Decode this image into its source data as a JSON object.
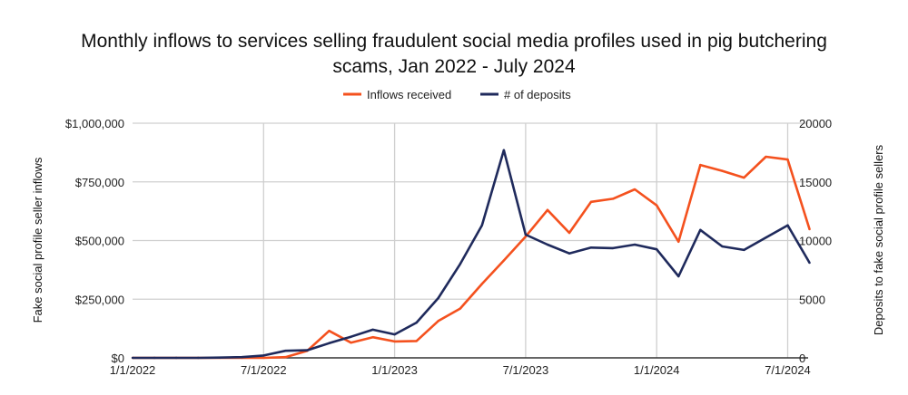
{
  "chart_data": {
    "type": "line",
    "title": [
      "Monthly inflows to services selling fraudulent social media profiles used in pig butchering",
      "scams, Jan 2022 - July 2024"
    ],
    "xlabel": "",
    "ylabel": "Fake social profile seller inflows",
    "y2label": "Deposits to fake social profile sellers",
    "x": [
      "2022-01",
      "2022-02",
      "2022-03",
      "2022-04",
      "2022-05",
      "2022-06",
      "2022-07",
      "2022-08",
      "2022-09",
      "2022-10",
      "2022-11",
      "2022-12",
      "2023-01",
      "2023-02",
      "2023-03",
      "2023-04",
      "2023-05",
      "2023-06",
      "2023-07",
      "2023-08",
      "2023-09",
      "2023-10",
      "2023-11",
      "2023-12",
      "2024-01",
      "2024-02",
      "2024-03",
      "2024-04",
      "2024-05",
      "2024-06",
      "2024-07",
      "2024-08"
    ],
    "x_ticks": [
      "1/1/2022",
      "7/1/2022",
      "1/1/2023",
      "7/1/2023",
      "1/1/2024",
      "7/1/2024"
    ],
    "ylim": [
      0,
      1000000
    ],
    "y_ticks": [
      "$0",
      "$250,000",
      "$500,000",
      "$750,000",
      "$1,000,000"
    ],
    "y2lim": [
      0,
      20000
    ],
    "y2_ticks": [
      "0",
      "5000",
      "10000",
      "15000",
      "20000"
    ],
    "grid": true,
    "legend_position": "top-center",
    "series": [
      {
        "name": "Inflows received",
        "axis": "left",
        "color": "#f4511e",
        "values": [
          0,
          0,
          0,
          0,
          0,
          0,
          0,
          3000,
          30000,
          115000,
          65000,
          88000,
          70000,
          72000,
          157000,
          210000,
          315000,
          415000,
          517000,
          630000,
          533000,
          665000,
          678000,
          718000,
          650000,
          495000,
          822000,
          797000,
          768000,
          857000,
          845000,
          548000
        ]
      },
      {
        "name": "# of deposits",
        "axis": "right",
        "color": "#1f2a5c",
        "values": [
          0,
          0,
          0,
          0,
          20,
          60,
          200,
          600,
          650,
          1250,
          1800,
          2400,
          2000,
          3000,
          5100,
          8000,
          11300,
          17700,
          10500,
          9650,
          8900,
          9400,
          9350,
          9650,
          9250,
          6950,
          10900,
          9500,
          9200,
          10250,
          11300,
          8100
        ]
      }
    ]
  }
}
